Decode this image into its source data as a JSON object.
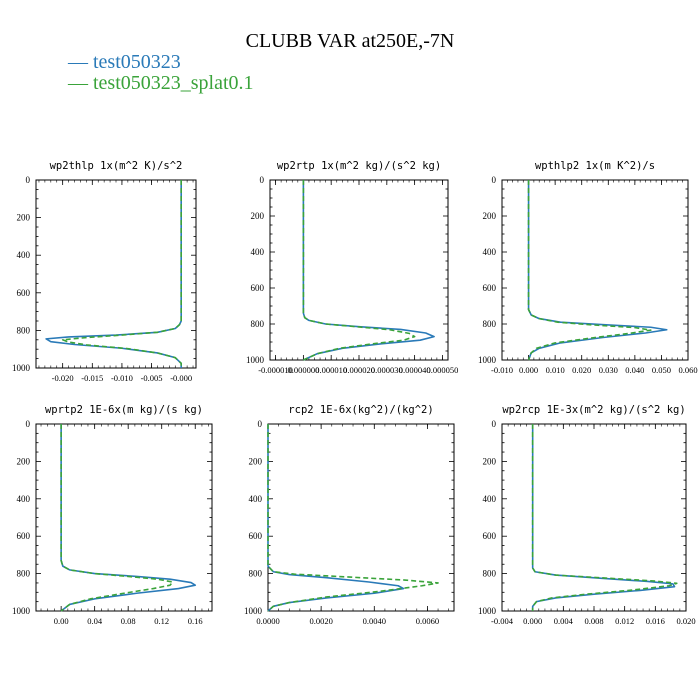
{
  "title": "CLUBB VAR at250E,-7N",
  "legend": [
    {
      "label": "test050323",
      "color": "#2a7ab8",
      "dash": "solid"
    },
    {
      "label": "test050323_splat0.1",
      "color": "#3aa33a",
      "dash": "dashed"
    }
  ],
  "chart_data": [
    {
      "type": "line",
      "title": "wp2thlp  1x(m^2 K)/s^2",
      "xlim": [
        -0.0245,
        0.0025
      ],
      "ylim": [
        1000,
        0
      ],
      "xticks": [
        -0.02,
        -0.015,
        -0.01,
        -0.005,
        -0.0
      ],
      "xtick_labels": [
        "-0.020",
        "-0.015",
        "-0.010",
        "-0.005",
        "-0.000"
      ],
      "yticks": [
        0,
        200,
        400,
        600,
        800,
        1000
      ],
      "ytick_labels": [
        "0",
        "200",
        "400",
        "600",
        "800",
        "1000"
      ],
      "series": [
        {
          "name": "test050323",
          "points": [
            [
              0,
              0
            ],
            [
              0,
              750
            ],
            [
              -0.0003,
              770
            ],
            [
              -0.001,
              790
            ],
            [
              -0.004,
              810
            ],
            [
              -0.011,
              825
            ],
            [
              -0.019,
              835
            ],
            [
              -0.0228,
              845
            ],
            [
              -0.022,
              860
            ],
            [
              -0.018,
              875
            ],
            [
              -0.01,
              895
            ],
            [
              -0.004,
              920
            ],
            [
              -0.001,
              945
            ],
            [
              0,
              975
            ],
            [
              0,
              1000
            ]
          ]
        },
        {
          "name": "test050323_splat0.1",
          "points": [
            [
              0,
              0
            ],
            [
              0,
              750
            ],
            [
              -0.0003,
              770
            ],
            [
              -0.001,
              790
            ],
            [
              -0.004,
              810
            ],
            [
              -0.01,
              825
            ],
            [
              -0.016,
              838
            ],
            [
              -0.02,
              850
            ],
            [
              -0.019,
              862
            ],
            [
              -0.016,
              877
            ],
            [
              -0.009,
              897
            ],
            [
              -0.004,
              920
            ],
            [
              -0.001,
              945
            ],
            [
              0,
              975
            ],
            [
              0,
              1000
            ]
          ]
        }
      ]
    },
    {
      "type": "line",
      "title": "wp2rtp  1x(m^2 kg)/(s^2 kg)",
      "xlim": [
        -1.2e-05,
        5.2e-05
      ],
      "ylim": [
        1000,
        0
      ],
      "xticks": [
        -1e-05,
        0.0,
        1e-05,
        2e-05,
        3e-05,
        4e-05,
        5e-05
      ],
      "xtick_labels": [
        "-0.000010",
        "0.000000",
        "0.000010",
        "0.000020",
        "0.000030",
        "0.000040",
        "0.000050"
      ],
      "yticks": [
        0,
        200,
        400,
        600,
        800,
        1000
      ],
      "ytick_labels": [
        "0",
        "200",
        "400",
        "600",
        "800",
        "1000"
      ],
      "series": [
        {
          "name": "test050323",
          "points": [
            [
              0,
              0
            ],
            [
              0,
              740
            ],
            [
              5e-07,
              765
            ],
            [
              2e-06,
              780
            ],
            [
              8e-06,
              800
            ],
            [
              2e-05,
              815
            ],
            [
              3.5e-05,
              830
            ],
            [
              4.4e-05,
              850
            ],
            [
              4.7e-05,
              870
            ],
            [
              4.2e-05,
              890
            ],
            [
              2.8e-05,
              910
            ],
            [
              1.4e-05,
              935
            ],
            [
              5e-06,
              965
            ],
            [
              0,
              1000
            ]
          ]
        },
        {
          "name": "test050323_splat0.1",
          "points": [
            [
              0,
              0
            ],
            [
              0,
              740
            ],
            [
              5e-07,
              765
            ],
            [
              2e-06,
              780
            ],
            [
              8e-06,
              800
            ],
            [
              1.9e-05,
              815
            ],
            [
              3.1e-05,
              832
            ],
            [
              3.8e-05,
              852
            ],
            [
              4e-05,
              870
            ],
            [
              3.6e-05,
              890
            ],
            [
              2.5e-05,
              910
            ],
            [
              1.3e-05,
              935
            ],
            [
              5e-06,
              965
            ],
            [
              0,
              1000
            ]
          ]
        }
      ]
    },
    {
      "type": "line",
      "title": "wpthlp2  1x(m K^2)/s",
      "xlim": [
        -0.01,
        0.06
      ],
      "ylim": [
        1000,
        0
      ],
      "xticks": [
        -0.01,
        0.0,
        0.01,
        0.02,
        0.03,
        0.04,
        0.05,
        0.06
      ],
      "xtick_labels": [
        "-0.010",
        "0.000",
        "0.010",
        "0.020",
        "0.030",
        "0.040",
        "0.050",
        "0.060"
      ],
      "yticks": [
        0,
        200,
        400,
        600,
        800,
        1000
      ],
      "ytick_labels": [
        "0",
        "200",
        "400",
        "600",
        "800",
        "1000"
      ],
      "series": [
        {
          "name": "test050323",
          "points": [
            [
              0,
              0
            ],
            [
              0,
              720
            ],
            [
              0.001,
              750
            ],
            [
              0.004,
              770
            ],
            [
              0.012,
              790
            ],
            [
              0.03,
              805
            ],
            [
              0.046,
              818
            ],
            [
              0.052,
              832
            ],
            [
              0.044,
              850
            ],
            [
              0.028,
              875
            ],
            [
              0.012,
              905
            ],
            [
              0.004,
              935
            ],
            [
              0.001,
              960
            ],
            [
              0,
              1000
            ]
          ]
        },
        {
          "name": "test050323_splat0.1",
          "points": [
            [
              0,
              0
            ],
            [
              0,
              720
            ],
            [
              0.001,
              750
            ],
            [
              0.004,
              770
            ],
            [
              0.011,
              790
            ],
            [
              0.026,
              807
            ],
            [
              0.04,
              820
            ],
            [
              0.046,
              834
            ],
            [
              0.038,
              852
            ],
            [
              0.024,
              877
            ],
            [
              0.01,
              905
            ],
            [
              0.003,
              935
            ],
            [
              0.001,
              960
            ],
            [
              0,
              1000
            ]
          ]
        }
      ]
    },
    {
      "type": "line",
      "title": "wprtp2  1E-6x(m kg)/(s kg)",
      "xlim": [
        -0.03,
        0.18
      ],
      "ylim": [
        1000,
        0
      ],
      "xticks": [
        0.0,
        0.04,
        0.08,
        0.12,
        0.16
      ],
      "xtick_labels": [
        "0.00",
        "0.04",
        "0.08",
        "0.12",
        "0.16"
      ],
      "yticks": [
        0,
        200,
        400,
        600,
        800,
        1000
      ],
      "ytick_labels": [
        "0",
        "200",
        "400",
        "600",
        "800",
        "1000"
      ],
      "series": [
        {
          "name": "test050323",
          "points": [
            [
              0,
              0
            ],
            [
              0,
              730
            ],
            [
              0.002,
              760
            ],
            [
              0.01,
              780
            ],
            [
              0.04,
              800
            ],
            [
              0.09,
              815
            ],
            [
              0.13,
              830
            ],
            [
              0.155,
              848
            ],
            [
              0.16,
              862
            ],
            [
              0.14,
              880
            ],
            [
              0.09,
              905
            ],
            [
              0.04,
              935
            ],
            [
              0.01,
              965
            ],
            [
              0,
              1000
            ]
          ]
        },
        {
          "name": "test050323_splat0.1",
          "points": [
            [
              0,
              0
            ],
            [
              0,
              730
            ],
            [
              0.002,
              760
            ],
            [
              0.01,
              780
            ],
            [
              0.04,
              800
            ],
            [
              0.08,
              815
            ],
            [
              0.115,
              830
            ],
            [
              0.133,
              845
            ],
            [
              0.13,
              862
            ],
            [
              0.11,
              880
            ],
            [
              0.075,
              905
            ],
            [
              0.035,
              935
            ],
            [
              0.01,
              965
            ],
            [
              0,
              1000
            ]
          ]
        }
      ]
    },
    {
      "type": "line",
      "title": "rcp2  1E-6x(kg^2)/(kg^2)",
      "xlim": [
        0.0,
        0.007
      ],
      "ylim": [
        1000,
        0
      ],
      "xticks": [
        0.0,
        0.002,
        0.004,
        0.006
      ],
      "xtick_labels": [
        "0.0000",
        "0.0020",
        "0.0040",
        "0.0060"
      ],
      "yticks": [
        0,
        200,
        400,
        600,
        800,
        1000
      ],
      "ytick_labels": [
        "0",
        "200",
        "400",
        "600",
        "800",
        "1000"
      ],
      "series": [
        {
          "name": "test050323",
          "points": [
            [
              0,
              0
            ],
            [
              0,
              760
            ],
            [
              0.0002,
              790
            ],
            [
              0.0008,
              805
            ],
            [
              0.0022,
              822
            ],
            [
              0.0038,
              845
            ],
            [
              0.0049,
              865
            ],
            [
              0.0051,
              880
            ],
            [
              0.004,
              905
            ],
            [
              0.0022,
              930
            ],
            [
              0.0008,
              955
            ],
            [
              0.0002,
              975
            ],
            [
              0,
              1000
            ]
          ]
        },
        {
          "name": "test050323_splat0.1",
          "points": [
            [
              0,
              0
            ],
            [
              0,
              760
            ],
            [
              0.0002,
              790
            ],
            [
              0.001,
              803
            ],
            [
              0.003,
              818
            ],
            [
              0.0052,
              835
            ],
            [
              0.0064,
              850
            ],
            [
              0.0058,
              865
            ],
            [
              0.0042,
              895
            ],
            [
              0.0022,
              925
            ],
            [
              0.0008,
              955
            ],
            [
              0.0002,
              975
            ],
            [
              0,
              1000
            ]
          ]
        }
      ]
    },
    {
      "type": "line",
      "title": "wp2rcp  1E-3x(m^2 kg)/(s^2 kg)",
      "xlim": [
        -0.004,
        0.02
      ],
      "ylim": [
        1000,
        0
      ],
      "xticks": [
        -0.004,
        0.0,
        0.004,
        0.008,
        0.012,
        0.016,
        0.02
      ],
      "xtick_labels": [
        "-0.004",
        "0.000",
        "0.004",
        "0.008",
        "0.012",
        "0.016",
        "0.020"
      ],
      "yticks": [
        0,
        200,
        400,
        600,
        800,
        1000
      ],
      "ytick_labels": [
        "0",
        "200",
        "400",
        "600",
        "800",
        "1000"
      ],
      "series": [
        {
          "name": "test050323",
          "points": [
            [
              0,
              0
            ],
            [
              0,
              770
            ],
            [
              0.0003,
              790
            ],
            [
              0.003,
              808
            ],
            [
              0.009,
              825
            ],
            [
              0.015,
              842
            ],
            [
              0.0183,
              855
            ],
            [
              0.0185,
              870
            ],
            [
              0.014,
              890
            ],
            [
              0.008,
              910
            ],
            [
              0.003,
              930
            ],
            [
              0.0005,
              950
            ],
            [
              0,
              975
            ],
            [
              0,
              1000
            ]
          ]
        },
        {
          "name": "test050323_splat0.1",
          "points": [
            [
              0,
              0
            ],
            [
              0,
              770
            ],
            [
              0.0003,
              790
            ],
            [
              0.003,
              808
            ],
            [
              0.01,
              825
            ],
            [
              0.016,
              840
            ],
            [
              0.0188,
              852
            ],
            [
              0.0178,
              865
            ],
            [
              0.013,
              888
            ],
            [
              0.007,
              910
            ],
            [
              0.0025,
              930
            ],
            [
              0.0005,
              950
            ],
            [
              0,
              975
            ],
            [
              0,
              1000
            ]
          ]
        }
      ]
    }
  ]
}
